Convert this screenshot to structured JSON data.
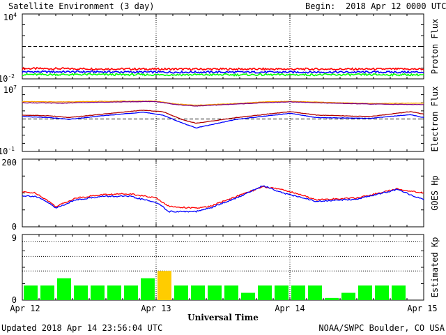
{
  "header": {
    "title": "Satellite Environment (3 day)",
    "begin_label": "Begin:",
    "begin_value": "2018 Apr 12 0000 UTC"
  },
  "footer": {
    "updated": "Updated 2018 Apr 14 23:56:04 UTC",
    "credit": "NOAA/SWPC Boulder, CO USA"
  },
  "colors": {
    "red": "#ff0000",
    "blue": "#0000ff",
    "green": "#00ff00",
    "orange": "#ffa500",
    "purple": "#800080",
    "dark_red": "#b00000",
    "yellow": "#ffcc00",
    "frame": "#000000"
  },
  "chart_data": [
    {
      "type": "line",
      "panel": "proton",
      "ylabel": "Proton Flux",
      "scale": "log",
      "ylim": [
        0.01,
        10000
      ],
      "ytick_labels": [
        {
          "base": "10",
          "exp": "4"
        },
        {
          "base": "10",
          "exp": "-2"
        }
      ],
      "reference_line": 10,
      "x_days": [
        0,
        3
      ],
      "series": [
        {
          "color": "#ff0000",
          "x": [
            0,
            0.5,
            1,
            1.5,
            2,
            2.5,
            3
          ],
          "y": [
            0.09,
            0.085,
            0.08,
            0.08,
            0.08,
            0.08,
            0.08
          ]
        },
        {
          "color": "#0000ff",
          "x": [
            0,
            0.5,
            1,
            1.5,
            2,
            2.5,
            3
          ],
          "y": [
            0.045,
            0.045,
            0.042,
            0.042,
            0.042,
            0.042,
            0.042
          ]
        },
        {
          "color": "#00ff00",
          "x": [
            0,
            0.5,
            1,
            1.5,
            2,
            2.5,
            3
          ],
          "y": [
            0.025,
            0.025,
            0.024,
            0.024,
            0.024,
            0.024,
            0.024
          ]
        }
      ]
    },
    {
      "type": "line",
      "panel": "electron",
      "ylabel": "Electron Flux",
      "scale": "log",
      "ylim": [
        0.1,
        10000000
      ],
      "ytick_labels": [
        {
          "base": "10",
          "exp": "7"
        },
        {
          "base": "10",
          "exp": "-1"
        }
      ],
      "reference_line": 1000,
      "x_days": [
        0,
        3
      ],
      "series": [
        {
          "color": "#ffa500",
          "x": [
            0,
            0.3,
            0.6,
            0.9,
            1.0,
            1.15,
            1.3,
            1.6,
            1.8,
            2.0,
            2.3,
            2.6,
            3.0
          ],
          "y": [
            140000,
            130000,
            150000,
            160000,
            160000,
            70000,
            50000,
            80000,
            130000,
            150000,
            110000,
            80000,
            90000
          ]
        },
        {
          "color": "#800080",
          "x": [
            0,
            0.3,
            0.6,
            0.9,
            1.0,
            1.15,
            1.3,
            1.6,
            1.8,
            2.0,
            2.3,
            2.6,
            3.0
          ],
          "y": [
            100000,
            90000,
            120000,
            140000,
            140000,
            60000,
            40000,
            70000,
            100000,
            130000,
            90000,
            70000,
            60000
          ]
        },
        {
          "color": "#b00000",
          "x": [
            0,
            0.2,
            0.35,
            0.6,
            0.9,
            1.05,
            1.2,
            1.3,
            1.6,
            2.0,
            2.2,
            2.6,
            2.9,
            3.0
          ],
          "y": [
            3000,
            2500,
            1500,
            4000,
            12000,
            8000,
            800,
            300,
            1500,
            8000,
            3000,
            2000,
            8000,
            4000
          ]
        },
        {
          "color": "#0000ff",
          "x": [
            0,
            0.2,
            0.35,
            0.6,
            0.9,
            1.05,
            1.2,
            1.3,
            1.6,
            2.0,
            2.2,
            2.6,
            2.9,
            3.0
          ],
          "y": [
            2000,
            1500,
            900,
            2500,
            7000,
            3000,
            300,
            80,
            900,
            5000,
            1500,
            1200,
            3500,
            1500
          ]
        }
      ]
    },
    {
      "type": "line",
      "panel": "goes_hp",
      "ylabel": "GOES Hp",
      "scale": "linear",
      "ylim": [
        0,
        200
      ],
      "ytick_labels": [
        "200",
        "0"
      ],
      "x_days": [
        0,
        3
      ],
      "series": [
        {
          "color": "#ff0000",
          "x": [
            0,
            0.1,
            0.2,
            0.25,
            0.4,
            0.6,
            0.8,
            1.0,
            1.1,
            1.3,
            1.4,
            1.6,
            1.8,
            1.95,
            2.2,
            2.5,
            2.8,
            3.0
          ],
          "y": [
            103,
            100,
            75,
            60,
            85,
            95,
            98,
            85,
            60,
            55,
            60,
            90,
            118,
            110,
            80,
            85,
            112,
            100
          ]
        },
        {
          "color": "#0000ff",
          "x": [
            0,
            0.1,
            0.2,
            0.25,
            0.4,
            0.6,
            0.8,
            1.0,
            1.1,
            1.3,
            1.4,
            1.6,
            1.8,
            1.95,
            2.2,
            2.5,
            2.8,
            3.0
          ],
          "y": [
            92,
            90,
            70,
            55,
            80,
            90,
            90,
            72,
            45,
            45,
            55,
            85,
            122,
            100,
            75,
            82,
            110,
            80
          ]
        }
      ]
    },
    {
      "type": "bar",
      "panel": "kp",
      "ylabel": "Estimated Kp",
      "ylim": [
        0,
        9
      ],
      "ytick_labels": [
        "9",
        "0"
      ],
      "dotted_levels": [
        4,
        6,
        8
      ],
      "bar_width_hours": 3,
      "values": [
        2,
        2,
        3,
        2,
        2,
        2,
        2,
        3,
        4,
        2,
        2,
        2,
        2,
        1,
        2,
        2,
        2,
        2,
        0.3,
        1,
        2,
        2,
        2,
        0
      ],
      "colors": [
        "#00ff00",
        "#00ff00",
        "#00ff00",
        "#00ff00",
        "#00ff00",
        "#00ff00",
        "#00ff00",
        "#00ff00",
        "#ffcc00",
        "#00ff00",
        "#00ff00",
        "#00ff00",
        "#00ff00",
        "#00ff00",
        "#00ff00",
        "#00ff00",
        "#00ff00",
        "#00ff00",
        "#00ff00",
        "#00ff00",
        "#00ff00",
        "#00ff00",
        "#00ff00",
        "#00ff00"
      ]
    }
  ],
  "x_axis": {
    "title": "Universal Time",
    "ticks": [
      "Apr 12",
      "Apr 13",
      "Apr 14",
      "Apr 15"
    ]
  }
}
